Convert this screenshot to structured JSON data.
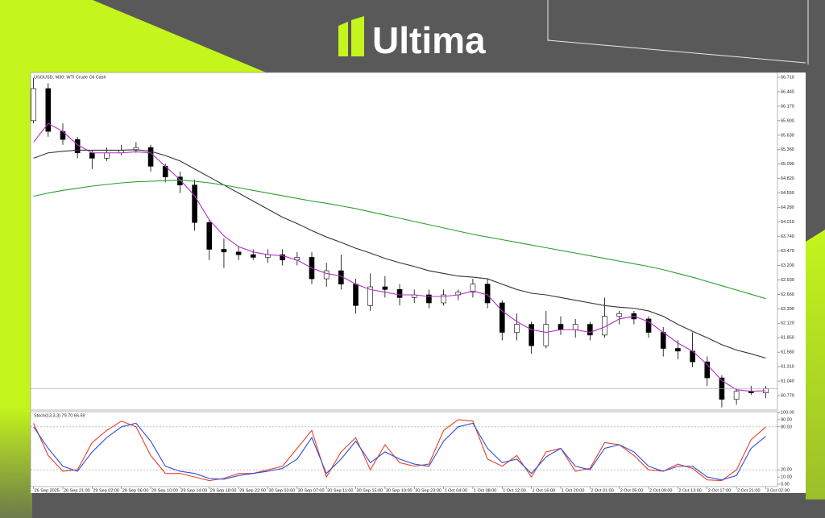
{
  "brand": "Ultima",
  "chart_data": [
    {
      "type": "candlestick",
      "title": "USOUSD, M30: WTI Crude Oil Cash",
      "xlim": [
        -0.2,
        50.8
      ],
      "ylim": [
        60.515,
        66.77
      ],
      "yticks": [
        {
          "value": 66.71,
          "label": "66.710"
        },
        {
          "value": 66.44,
          "label": "66.440"
        },
        {
          "value": 66.17,
          "label": "66.170"
        },
        {
          "value": 65.9,
          "label": "65.900"
        },
        {
          "value": 65.63,
          "label": "65.630"
        },
        {
          "value": 65.36,
          "label": "65.360"
        },
        {
          "value": 65.09,
          "label": "65.090"
        },
        {
          "value": 64.82,
          "label": "64.820"
        },
        {
          "value": 64.55,
          "label": "64.550"
        },
        {
          "value": 64.28,
          "label": "64.280"
        },
        {
          "value": 64.01,
          "label": "64.010"
        },
        {
          "value": 63.74,
          "label": "63.740"
        },
        {
          "value": 63.47,
          "label": "63.470"
        },
        {
          "value": 63.2,
          "label": "63.200"
        },
        {
          "value": 62.93,
          "label": "62.930"
        },
        {
          "value": 62.66,
          "label": "62.660"
        },
        {
          "value": 62.39,
          "label": "62.390"
        },
        {
          "value": 62.12,
          "label": "62.120"
        },
        {
          "value": 61.85,
          "label": "61.850"
        },
        {
          "value": 61.58,
          "label": "61.580"
        },
        {
          "value": 61.31,
          "label": "61.310"
        },
        {
          "value": 61.04,
          "label": "61.040"
        },
        {
          "value": 60.77,
          "label": "60.770"
        }
      ],
      "up_color": "#ffffff",
      "down_color": "#000000",
      "open": [
        65.9,
        66.5,
        65.7,
        65.55,
        65.3,
        65.2,
        65.3,
        65.35,
        65.4,
        65.05,
        64.85,
        64.7,
        64.0,
        63.5,
        63.45,
        63.4,
        63.35,
        63.4,
        63.3,
        63.35,
        62.95,
        63.1,
        62.85,
        62.45,
        62.8,
        62.75,
        62.6,
        62.65,
        62.5,
        62.65,
        62.7,
        62.85,
        62.5,
        61.95,
        62.1,
        61.7,
        62.1,
        62.0,
        62.1,
        61.9,
        62.25,
        62.3,
        62.2,
        61.95,
        61.65,
        61.6,
        61.4,
        61.1,
        60.7,
        60.85,
        60.82
      ],
      "high": [
        66.7,
        66.6,
        65.85,
        65.6,
        65.35,
        65.4,
        65.45,
        65.5,
        65.45,
        65.1,
        64.95,
        64.8,
        64.05,
        63.7,
        63.55,
        63.5,
        63.5,
        63.5,
        63.45,
        63.45,
        63.25,
        63.4,
        62.95,
        63.05,
        63.0,
        62.85,
        62.75,
        62.75,
        62.75,
        62.75,
        62.95,
        62.95,
        62.55,
        62.3,
        62.15,
        62.35,
        62.25,
        62.2,
        62.15,
        62.6,
        62.35,
        62.35,
        62.25,
        62.05,
        61.8,
        61.95,
        61.5,
        61.15,
        60.9,
        60.95,
        60.95
      ],
      "low": [
        65.85,
        65.6,
        65.45,
        65.2,
        65.0,
        65.15,
        65.25,
        65.3,
        64.95,
        64.75,
        64.55,
        63.85,
        63.3,
        63.15,
        63.3,
        63.3,
        63.25,
        63.2,
        63.2,
        62.85,
        62.8,
        62.75,
        62.3,
        62.35,
        62.6,
        62.45,
        62.5,
        62.4,
        62.45,
        62.55,
        62.6,
        62.4,
        61.8,
        61.8,
        61.55,
        61.65,
        61.9,
        61.85,
        61.8,
        61.85,
        62.1,
        62.1,
        61.85,
        61.5,
        61.45,
        61.3,
        60.95,
        60.55,
        60.6,
        60.78,
        60.72
      ],
      "close": [
        66.5,
        65.7,
        65.55,
        65.3,
        65.2,
        65.3,
        65.35,
        65.4,
        65.05,
        64.85,
        64.7,
        64.0,
        63.5,
        63.45,
        63.4,
        63.35,
        63.4,
        63.3,
        63.35,
        62.95,
        63.1,
        62.85,
        62.45,
        62.8,
        62.75,
        62.6,
        62.65,
        62.5,
        62.65,
        62.7,
        62.85,
        62.5,
        61.95,
        62.1,
        61.7,
        62.1,
        62.0,
        62.1,
        61.9,
        62.25,
        62.3,
        62.2,
        61.95,
        61.65,
        61.6,
        61.4,
        61.1,
        60.7,
        60.85,
        60.82,
        60.9
      ],
      "series": [
        {
          "color": "#b030c0",
          "values": [
            65.5,
            65.85,
            65.7,
            65.45,
            65.3,
            65.3,
            65.3,
            65.32,
            65.3,
            65.05,
            64.8,
            64.5,
            64.05,
            63.75,
            63.55,
            63.45,
            63.4,
            63.38,
            63.3,
            63.15,
            63.05,
            63.0,
            62.85,
            62.75,
            62.7,
            62.65,
            62.65,
            62.62,
            62.62,
            62.65,
            62.72,
            62.65,
            62.35,
            62.15,
            62.0,
            61.95,
            62.0,
            62.0,
            61.95,
            62.05,
            62.2,
            62.25,
            62.15,
            61.95,
            61.75,
            61.6,
            61.35,
            61.05,
            60.88,
            60.85,
            60.86
          ]
        },
        {
          "color": "#333333",
          "values": [
            65.2,
            65.3,
            65.33,
            65.35,
            65.35,
            65.35,
            65.35,
            65.36,
            65.33,
            65.25,
            65.15,
            65.0,
            64.85,
            64.7,
            64.55,
            64.4,
            64.25,
            64.1,
            63.98,
            63.85,
            63.73,
            63.63,
            63.52,
            63.43,
            63.33,
            63.25,
            63.18,
            63.1,
            63.05,
            63.0,
            62.98,
            62.95,
            62.85,
            62.75,
            62.68,
            62.65,
            62.6,
            62.55,
            62.5,
            62.45,
            62.42,
            62.4,
            62.35,
            62.25,
            62.1,
            61.97,
            61.85,
            61.72,
            61.62,
            61.55,
            61.47
          ]
        },
        {
          "color": "#2e9e2e",
          "values": [
            64.49,
            64.55,
            64.6,
            64.64,
            64.68,
            64.71,
            64.74,
            64.76,
            64.77,
            64.78,
            64.79,
            64.77,
            64.74,
            64.7,
            64.65,
            64.6,
            64.55,
            64.5,
            64.45,
            64.4,
            64.36,
            64.31,
            64.26,
            64.2,
            64.14,
            64.08,
            64.02,
            63.96,
            63.9,
            63.84,
            63.78,
            63.73,
            63.68,
            63.63,
            63.58,
            63.53,
            63.48,
            63.43,
            63.38,
            63.33,
            63.28,
            63.23,
            63.18,
            63.12,
            63.05,
            62.98,
            62.9,
            62.82,
            62.74,
            62.66,
            62.58
          ]
        }
      ]
    },
    {
      "type": "line",
      "title": "Stoch(13,3,3) 79.70 66.59",
      "xlim": [
        -0.2,
        50.8
      ],
      "ylim": [
        0,
        100
      ],
      "yticks": [
        {
          "value": 100,
          "label": "100.00"
        },
        {
          "value": 90,
          "label": "90.00"
        },
        {
          "value": 80,
          "label": "80.00"
        },
        {
          "value": 20,
          "label": "20.00"
        },
        {
          "value": 10,
          "label": "10.00"
        },
        {
          "value": 0,
          "label": "0.00"
        }
      ],
      "levels": [
        80,
        20
      ],
      "xticks": [
        {
          "value": 0,
          "label": "26 Sep 2025"
        },
        {
          "value": 2,
          "label": "26 Sep 21:00"
        },
        {
          "value": 4,
          "label": "29 Sep 02:00"
        },
        {
          "value": 6,
          "label": "29 Sep 06:00"
        },
        {
          "value": 8,
          "label": "29 Sep 10:00"
        },
        {
          "value": 10,
          "label": "29 Sep 14:00"
        },
        {
          "value": 12,
          "label": "29 Sep 18:00"
        },
        {
          "value": 14,
          "label": "29 Sep 22:00"
        },
        {
          "value": 16,
          "label": "30 Sep 03:00"
        },
        {
          "value": 18,
          "label": "30 Sep 07:00"
        },
        {
          "value": 20,
          "label": "30 Sep 11:00"
        },
        {
          "value": 22,
          "label": "30 Sep 15:00"
        },
        {
          "value": 24,
          "label": "30 Sep 19:00"
        },
        {
          "value": 26,
          "label": "30 Sep 23:00"
        },
        {
          "value": 28,
          "label": "1 Oct 04:00"
        },
        {
          "value": 30,
          "label": "1 Oct 08:00"
        },
        {
          "value": 32,
          "label": "1 Oct 12:00"
        },
        {
          "value": 34,
          "label": "1 Oct 16:00"
        },
        {
          "value": 36,
          "label": "1 Oct 20:00"
        },
        {
          "value": 38,
          "label": "2 Oct 01:00"
        },
        {
          "value": 40,
          "label": "2 Oct 05:00"
        },
        {
          "value": 42,
          "label": "2 Oct 09:00"
        },
        {
          "value": 44,
          "label": "2 Oct 13:00"
        },
        {
          "value": 46,
          "label": "2 Oct 17:00"
        },
        {
          "value": 48,
          "label": "2 Oct 21:00"
        },
        {
          "value": 50,
          "label": "3 Oct 02:00"
        }
      ],
      "series": [
        {
          "color": "#e8402a",
          "values": [
            85,
            40,
            18,
            20,
            58,
            75,
            88,
            80,
            40,
            15,
            15,
            10,
            5,
            8,
            15,
            15,
            20,
            25,
            50,
            75,
            10,
            45,
            65,
            20,
            55,
            30,
            25,
            28,
            75,
            90,
            88,
            35,
            25,
            40,
            10,
            45,
            50,
            18,
            22,
            58,
            55,
            40,
            20,
            18,
            28,
            22,
            6,
            5,
            20,
            62,
            79.7
          ]
        },
        {
          "color": "#3050d8",
          "values": [
            80,
            50,
            25,
            18,
            45,
            65,
            80,
            85,
            60,
            25,
            18,
            15,
            8,
            7,
            12,
            15,
            18,
            22,
            35,
            65,
            15,
            35,
            60,
            30,
            45,
            35,
            28,
            25,
            60,
            80,
            85,
            50,
            30,
            35,
            15,
            38,
            50,
            25,
            20,
            50,
            55,
            45,
            25,
            18,
            25,
            25,
            10,
            6,
            12,
            50,
            66.59
          ]
        }
      ]
    }
  ]
}
